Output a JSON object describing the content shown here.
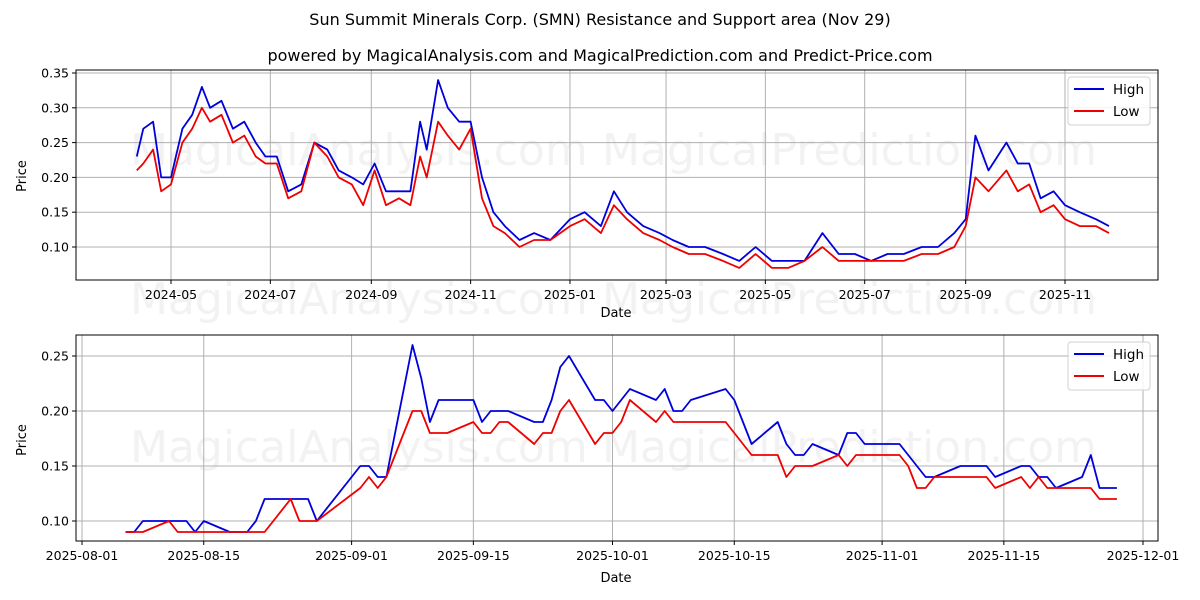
{
  "header": {
    "title": "Sun Summit Minerals Corp. (SMN) Resistance and Support area (Nov 29)",
    "subtitle": "powered by MagicalAnalysis.com and MagicalPrediction.com and Predict-Price.com"
  },
  "watermarks": [
    "MagicalAnalysis.com",
    "MagicalPrediction.com"
  ],
  "colors": {
    "high": "#0000dd",
    "low": "#ee0000",
    "grid": "#b0b0b0"
  },
  "chart_data": [
    {
      "type": "line",
      "title": "",
      "xlabel": "Date",
      "ylabel": "Price",
      "ylim": [
        0.055,
        0.355
      ],
      "grid": true,
      "legend_position": "upper right",
      "x_ticks": [
        "2024-05",
        "2024-07",
        "2024-09",
        "2024-11",
        "2025-01",
        "2025-03",
        "2025-05",
        "2025-07",
        "2025-09",
        "2025-11"
      ],
      "y_ticks": [
        "0.10",
        "0.15",
        "0.20",
        "0.25",
        "0.30",
        "0.35"
      ],
      "x": [
        "2024-04-10",
        "2024-04-14",
        "2024-04-20",
        "2024-04-25",
        "2024-05-01",
        "2024-05-08",
        "2024-05-14",
        "2024-05-20",
        "2024-05-25",
        "2024-06-01",
        "2024-06-08",
        "2024-06-15",
        "2024-06-22",
        "2024-06-28",
        "2024-07-05",
        "2024-07-12",
        "2024-07-20",
        "2024-07-28",
        "2024-08-05",
        "2024-08-12",
        "2024-08-20",
        "2024-08-27",
        "2024-09-03",
        "2024-09-10",
        "2024-09-18",
        "2024-09-25",
        "2024-10-01",
        "2024-10-05",
        "2024-10-12",
        "2024-10-18",
        "2024-10-25",
        "2024-11-01",
        "2024-11-08",
        "2024-11-15",
        "2024-11-22",
        "2024-12-01",
        "2024-12-10",
        "2024-12-20",
        "2025-01-01",
        "2025-01-10",
        "2025-01-20",
        "2025-01-28",
        "2025-02-05",
        "2025-02-15",
        "2025-02-25",
        "2025-03-05",
        "2025-03-15",
        "2025-03-25",
        "2025-04-05",
        "2025-04-15",
        "2025-04-25",
        "2025-05-05",
        "2025-05-15",
        "2025-05-25",
        "2025-06-05",
        "2025-06-15",
        "2025-06-25",
        "2025-07-05",
        "2025-07-15",
        "2025-07-25",
        "2025-08-05",
        "2025-08-15",
        "2025-08-25",
        "2025-09-01",
        "2025-09-07",
        "2025-09-15",
        "2025-09-26",
        "2025-10-03",
        "2025-10-10",
        "2025-10-17",
        "2025-10-25",
        "2025-11-01",
        "2025-11-10",
        "2025-11-20",
        "2025-11-28"
      ],
      "series": [
        {
          "name": "High",
          "color": "#0000dd",
          "values": [
            0.23,
            0.27,
            0.28,
            0.2,
            0.2,
            0.27,
            0.29,
            0.33,
            0.3,
            0.31,
            0.27,
            0.28,
            0.25,
            0.23,
            0.23,
            0.18,
            0.19,
            0.25,
            0.24,
            0.21,
            0.2,
            0.19,
            0.22,
            0.18,
            0.18,
            0.18,
            0.28,
            0.24,
            0.34,
            0.3,
            0.28,
            0.28,
            0.2,
            0.15,
            0.13,
            0.11,
            0.12,
            0.11,
            0.14,
            0.15,
            0.13,
            0.18,
            0.15,
            0.13,
            0.12,
            0.11,
            0.1,
            0.1,
            0.09,
            0.08,
            0.1,
            0.08,
            0.08,
            0.08,
            0.12,
            0.09,
            0.09,
            0.08,
            0.09,
            0.09,
            0.1,
            0.1,
            0.12,
            0.14,
            0.26,
            0.21,
            0.25,
            0.22,
            0.22,
            0.17,
            0.18,
            0.16,
            0.15,
            0.14,
            0.13
          ]
        },
        {
          "name": "Low",
          "color": "#ee0000",
          "values": [
            0.21,
            0.22,
            0.24,
            0.18,
            0.19,
            0.25,
            0.27,
            0.3,
            0.28,
            0.29,
            0.25,
            0.26,
            0.23,
            0.22,
            0.22,
            0.17,
            0.18,
            0.25,
            0.23,
            0.2,
            0.19,
            0.16,
            0.21,
            0.16,
            0.17,
            0.16,
            0.23,
            0.2,
            0.28,
            0.26,
            0.24,
            0.27,
            0.17,
            0.13,
            0.12,
            0.1,
            0.11,
            0.11,
            0.13,
            0.14,
            0.12,
            0.16,
            0.14,
            0.12,
            0.11,
            0.1,
            0.09,
            0.09,
            0.08,
            0.07,
            0.09,
            0.07,
            0.07,
            0.08,
            0.1,
            0.08,
            0.08,
            0.08,
            0.08,
            0.08,
            0.09,
            0.09,
            0.1,
            0.13,
            0.2,
            0.18,
            0.21,
            0.18,
            0.19,
            0.15,
            0.16,
            0.14,
            0.13,
            0.13,
            0.12
          ]
        }
      ]
    },
    {
      "type": "line",
      "title": "",
      "xlabel": "Date",
      "ylabel": "Price",
      "ylim": [
        0.081,
        0.269
      ],
      "grid": true,
      "legend_position": "upper right",
      "x_ticks": [
        "2025-08-01",
        "2025-08-15",
        "2025-09-01",
        "2025-09-15",
        "2025-10-01",
        "2025-10-15",
        "2025-11-01",
        "2025-11-15",
        "2025-12-01"
      ],
      "y_ticks": [
        "0.10",
        "0.15",
        "0.20",
        "0.25"
      ],
      "x": [
        "2025-08-06",
        "2025-08-07",
        "2025-08-08",
        "2025-08-11",
        "2025-08-12",
        "2025-08-13",
        "2025-08-14",
        "2025-08-15",
        "2025-08-18",
        "2025-08-19",
        "2025-08-20",
        "2025-08-21",
        "2025-08-22",
        "2025-08-25",
        "2025-08-26",
        "2025-08-27",
        "2025-08-28",
        "2025-09-02",
        "2025-09-03",
        "2025-09-04",
        "2025-09-05",
        "2025-09-08",
        "2025-09-09",
        "2025-09-10",
        "2025-09-11",
        "2025-09-12",
        "2025-09-15",
        "2025-09-16",
        "2025-09-17",
        "2025-09-18",
        "2025-09-19",
        "2025-09-22",
        "2025-09-23",
        "2025-09-24",
        "2025-09-25",
        "2025-09-26",
        "2025-09-29",
        "2025-09-30",
        "2025-10-01",
        "2025-10-02",
        "2025-10-03",
        "2025-10-06",
        "2025-10-07",
        "2025-10-08",
        "2025-10-09",
        "2025-10-10",
        "2025-10-14",
        "2025-10-15",
        "2025-10-17",
        "2025-10-20",
        "2025-10-21",
        "2025-10-22",
        "2025-10-23",
        "2025-10-24",
        "2025-10-27",
        "2025-10-28",
        "2025-10-29",
        "2025-10-30",
        "2025-10-31",
        "2025-11-03",
        "2025-11-04",
        "2025-11-05",
        "2025-11-06",
        "2025-11-07",
        "2025-11-10",
        "2025-11-11",
        "2025-11-12",
        "2025-11-13",
        "2025-11-14",
        "2025-11-17",
        "2025-11-18",
        "2025-11-19",
        "2025-11-20",
        "2025-11-21",
        "2025-11-24",
        "2025-11-25",
        "2025-11-26",
        "2025-11-27",
        "2025-11-28"
      ],
      "series": [
        {
          "name": "High",
          "color": "#0000dd",
          "values": [
            0.09,
            0.09,
            0.1,
            0.1,
            0.1,
            0.1,
            0.09,
            0.1,
            0.09,
            0.09,
            0.09,
            0.1,
            0.12,
            0.12,
            0.12,
            0.12,
            0.1,
            0.15,
            0.15,
            0.14,
            0.14,
            0.26,
            0.23,
            0.19,
            0.21,
            0.21,
            0.21,
            0.19,
            0.2,
            0.2,
            0.2,
            0.19,
            0.19,
            0.21,
            0.24,
            0.25,
            0.21,
            0.21,
            0.2,
            0.21,
            0.22,
            0.21,
            0.22,
            0.2,
            0.2,
            0.21,
            0.22,
            0.21,
            0.17,
            0.19,
            0.17,
            0.16,
            0.16,
            0.17,
            0.16,
            0.18,
            0.18,
            0.17,
            0.17,
            0.17,
            0.16,
            0.15,
            0.14,
            0.14,
            0.15,
            0.15,
            0.15,
            0.15,
            0.14,
            0.15,
            0.15,
            0.14,
            0.14,
            0.13,
            0.14,
            0.16,
            0.13,
            0.13,
            0.13
          ]
        },
        {
          "name": "Low",
          "color": "#ee0000",
          "values": [
            0.09,
            0.09,
            0.09,
            0.1,
            0.09,
            0.09,
            0.09,
            0.09,
            0.09,
            0.09,
            0.09,
            0.09,
            0.09,
            0.12,
            0.1,
            0.1,
            0.1,
            0.13,
            0.14,
            0.13,
            0.14,
            0.2,
            0.2,
            0.18,
            0.18,
            0.18,
            0.19,
            0.18,
            0.18,
            0.19,
            0.19,
            0.17,
            0.18,
            0.18,
            0.2,
            0.21,
            0.17,
            0.18,
            0.18,
            0.19,
            0.21,
            0.19,
            0.2,
            0.19,
            0.19,
            0.19,
            0.19,
            0.18,
            0.16,
            0.16,
            0.14,
            0.15,
            0.15,
            0.15,
            0.16,
            0.15,
            0.16,
            0.16,
            0.16,
            0.16,
            0.15,
            0.13,
            0.13,
            0.14,
            0.14,
            0.14,
            0.14,
            0.14,
            0.13,
            0.14,
            0.13,
            0.14,
            0.13,
            0.13,
            0.13,
            0.13,
            0.12,
            0.12,
            0.12
          ]
        }
      ]
    }
  ]
}
